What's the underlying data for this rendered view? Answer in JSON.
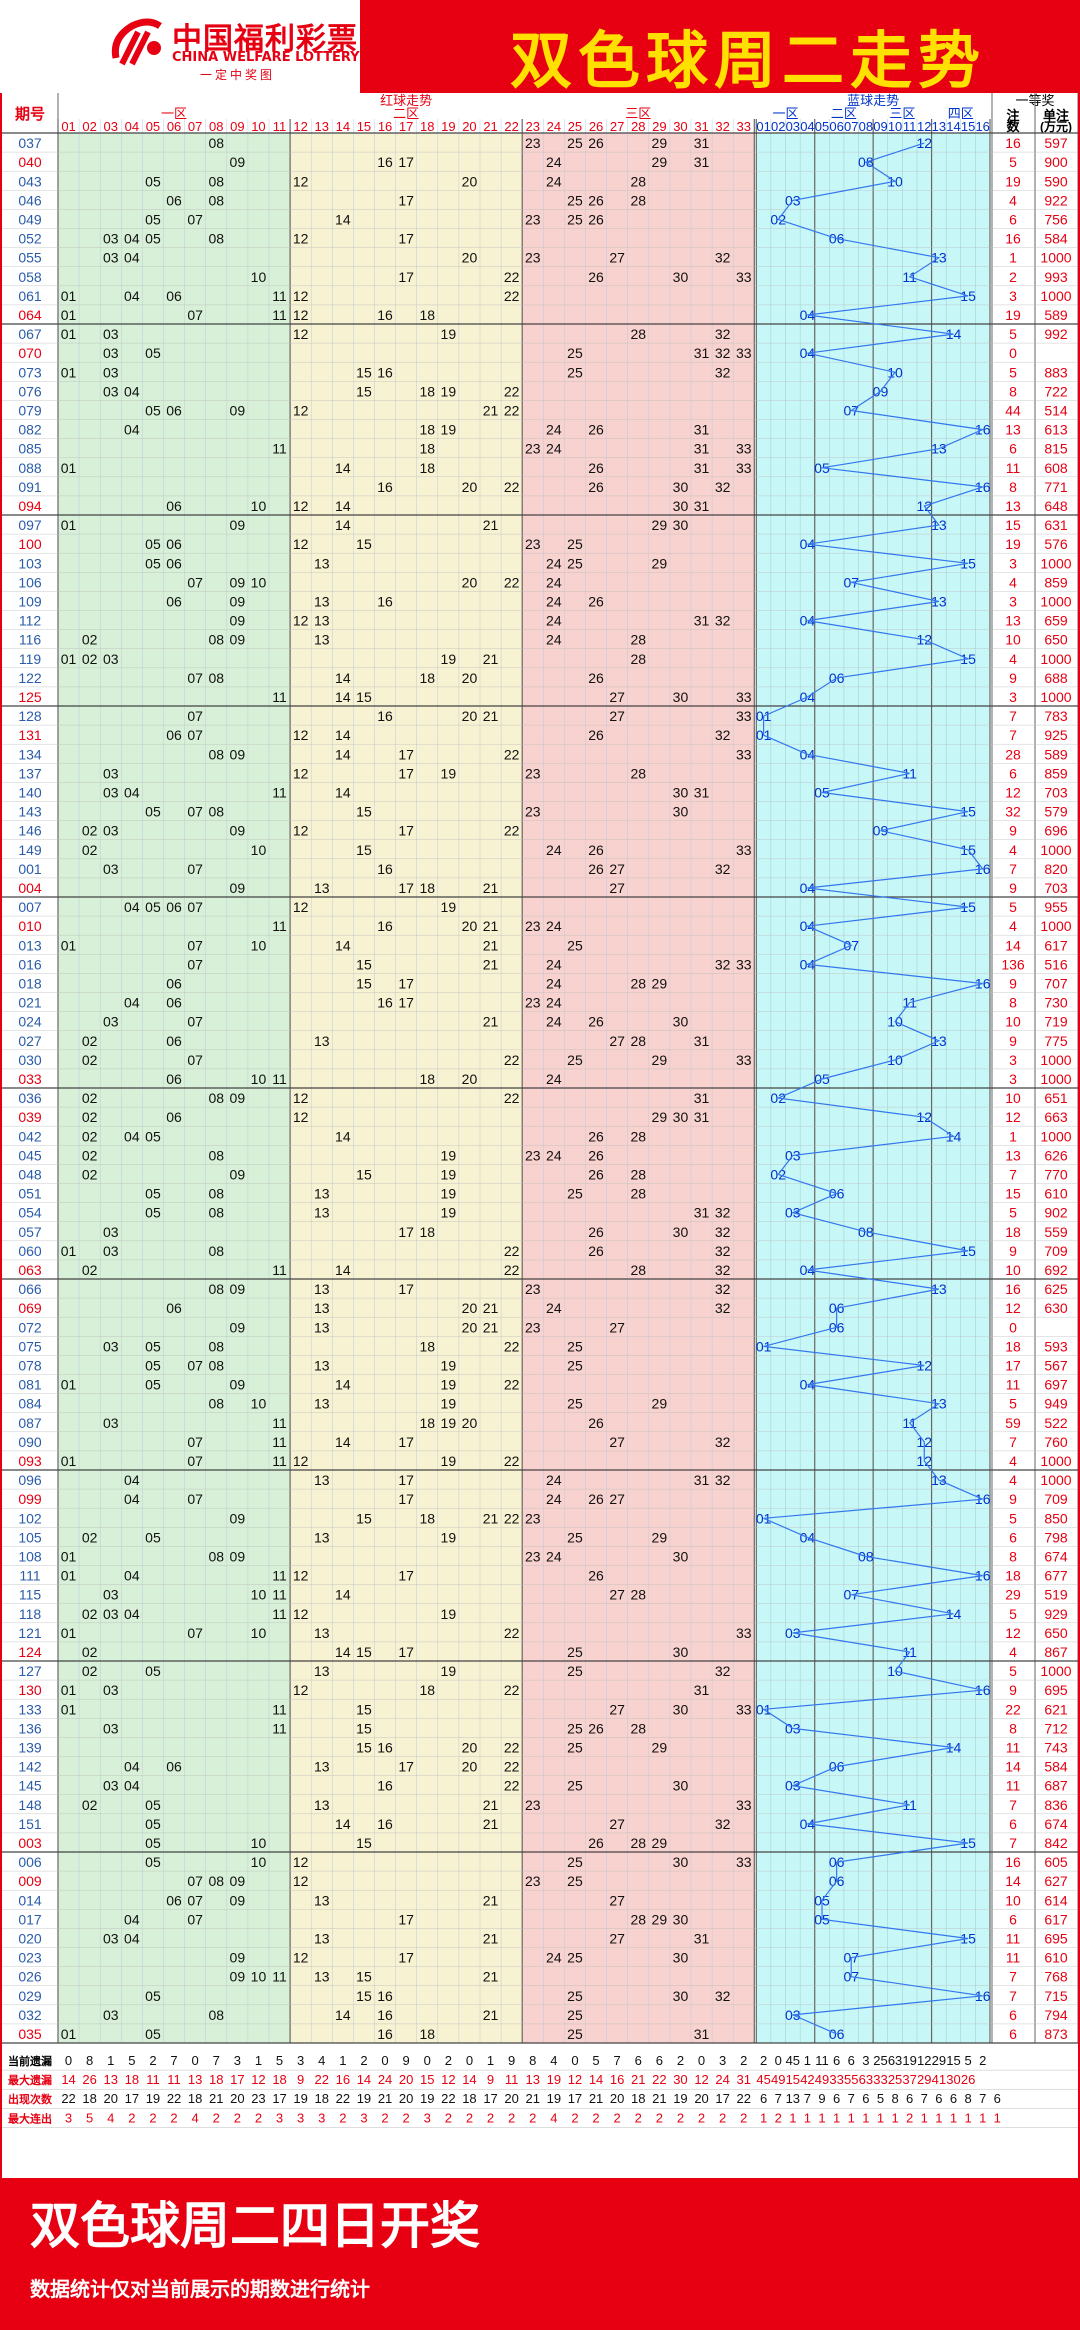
{
  "header": {
    "logo_cn": "中国福利彩票",
    "logo_en": "CHINA WELFARE LOTTERY",
    "logo_sub": "一定中奖图",
    "title": "双色球周二走势"
  },
  "table": {
    "issue_label": "期号",
    "red_label": "红球走势",
    "zone1": "一区",
    "zone2": "二区",
    "zone3": "三区",
    "blue_label": "蓝球走势",
    "bzone1": "一区",
    "bzone2": "二区",
    "bzone3": "三区",
    "bzone4": "四区",
    "prize_label": "一等奖",
    "count_label": "注数",
    "money_label": "单注(万元)"
  },
  "stats_labels": [
    "当前遗漏",
    "最大遗漏",
    "出现次数",
    "最大连出"
  ],
  "stats": [
    "0 8 1 5 2 7 0 7 3 1 5 3 4 1 2 0 9 0 2 0 1 9 8 4 0 5 7 6 6 2 0 3 2 2 0 45 1 11 6 6 3 25 63 19 12 29 15 5 2",
    "14 26 13 18 11 11 13 18 17 12 18 9 22 16 14 24 20 15 12 14 9 11 13 19 12 14 16 21 22 30 12 24 31 45 49 15 42 49 33 55 63 33 25 37 29 41 30 26",
    "22 18 20 17 19 22 18 21 20 23 17 19 18 22 19 21 20 19 22 18 17 20 21 19 17 21 20 18 21 19 20 17 22 6 7 13 7 9 6 7 6 5 8 6 7 6 6 8 7 6",
    "3 5 4 2 2 2 4 2 2 2 3 3 3 2 3 2 2 3 2 2 2 2 2 4 2 2 2 2 2 2 2 2 2 1 2 1 1 1 1 1 1 1 1 2 1 1 1 1 1 1"
  ],
  "footer": {
    "big": "双色球周二四日开奖",
    "small": "数据统计仅对当前展示的期数进行统计"
  },
  "draws": [
    {
      "i": "037",
      "r": [
        8,
        23,
        25,
        26,
        29,
        31
      ],
      "b": 12,
      "c": "16",
      "m": "597"
    },
    {
      "i": "040",
      "r": [
        9,
        16,
        17,
        24,
        29,
        31
      ],
      "b": 8,
      "c": "5",
      "m": "900"
    },
    {
      "i": "043",
      "r": [
        5,
        8,
        12,
        20,
        24,
        28
      ],
      "b": 10,
      "c": "19",
      "m": "590"
    },
    {
      "i": "046",
      "r": [
        6,
        8,
        17,
        25,
        26,
        28
      ],
      "b": 3,
      "c": "4",
      "m": "922"
    },
    {
      "i": "049",
      "r": [
        5,
        7,
        14,
        23,
        25,
        26
      ],
      "b": 2,
      "c": "6",
      "m": "756"
    },
    {
      "i": "052",
      "r": [
        3,
        4,
        5,
        8,
        12,
        17
      ],
      "b": 6,
      "c": "16",
      "m": "584"
    },
    {
      "i": "055",
      "r": [
        3,
        4,
        20,
        23,
        27,
        32
      ],
      "b": 13,
      "c": "1",
      "m": "1000"
    },
    {
      "i": "058",
      "r": [
        10,
        17,
        22,
        26,
        30,
        33
      ],
      "b": 11,
      "c": "2",
      "m": "993"
    },
    {
      "i": "061",
      "r": [
        1,
        4,
        6,
        11,
        12,
        22
      ],
      "b": 15,
      "c": "3",
      "m": "1000"
    },
    {
      "i": "064",
      "r": [
        1,
        7,
        11,
        12,
        16,
        18
      ],
      "b": 4,
      "c": "19",
      "m": "589"
    },
    {
      "i": "067",
      "r": [
        1,
        3,
        12,
        19,
        28,
        32
      ],
      "b": 14,
      "c": "5",
      "m": "992"
    },
    {
      "i": "070",
      "r": [
        3,
        5,
        25,
        31,
        32,
        33
      ],
      "b": 4,
      "c": "0",
      "m": ""
    },
    {
      "i": "073",
      "r": [
        1,
        3,
        15,
        16,
        25,
        32
      ],
      "b": 10,
      "c": "5",
      "m": "883"
    },
    {
      "i": "076",
      "r": [
        3,
        4,
        15,
        18,
        19,
        22
      ],
      "b": 9,
      "c": "8",
      "m": "722"
    },
    {
      "i": "079",
      "r": [
        5,
        6,
        9,
        12,
        21,
        22
      ],
      "b": 7,
      "c": "44",
      "m": "514"
    },
    {
      "i": "082",
      "r": [
        4,
        18,
        19,
        24,
        26,
        31
      ],
      "b": 16,
      "c": "13",
      "m": "613"
    },
    {
      "i": "085",
      "r": [
        11,
        18,
        23,
        24,
        31,
        33
      ],
      "b": 13,
      "c": "6",
      "m": "815"
    },
    {
      "i": "088",
      "r": [
        1,
        14,
        18,
        26,
        31,
        33
      ],
      "b": 5,
      "c": "11",
      "m": "608"
    },
    {
      "i": "091",
      "r": [
        16,
        20,
        22,
        26,
        30,
        32
      ],
      "b": 16,
      "c": "8",
      "m": "771"
    },
    {
      "i": "094",
      "r": [
        6,
        10,
        12,
        14,
        30,
        31
      ],
      "b": 12,
      "c": "13",
      "m": "648"
    },
    {
      "i": "097",
      "r": [
        1,
        9,
        14,
        21,
        29,
        30
      ],
      "b": 13,
      "c": "15",
      "m": "631"
    },
    {
      "i": "100",
      "r": [
        5,
        6,
        12,
        15,
        23,
        25
      ],
      "b": 4,
      "c": "19",
      "m": "576"
    },
    {
      "i": "103",
      "r": [
        5,
        6,
        13,
        24,
        25,
        29
      ],
      "b": 15,
      "c": "3",
      "m": "1000"
    },
    {
      "i": "106",
      "r": [
        7,
        9,
        10,
        20,
        22,
        24
      ],
      "b": 7,
      "c": "4",
      "m": "859"
    },
    {
      "i": "109",
      "r": [
        6,
        9,
        13,
        16,
        24,
        26
      ],
      "b": 13,
      "c": "3",
      "m": "1000"
    },
    {
      "i": "112",
      "r": [
        9,
        12,
        13,
        24,
        31,
        32
      ],
      "b": 4,
      "c": "13",
      "m": "659"
    },
    {
      "i": "116",
      "r": [
        2,
        8,
        9,
        13,
        24,
        28
      ],
      "b": 12,
      "c": "10",
      "m": "650"
    },
    {
      "i": "119",
      "r": [
        1,
        2,
        3,
        19,
        21,
        28
      ],
      "b": 15,
      "c": "4",
      "m": "1000"
    },
    {
      "i": "122",
      "r": [
        7,
        8,
        14,
        18,
        20,
        26
      ],
      "b": 6,
      "c": "9",
      "m": "688"
    },
    {
      "i": "125",
      "r": [
        11,
        14,
        15,
        27,
        30,
        33
      ],
      "b": 4,
      "c": "3",
      "m": "1000"
    },
    {
      "i": "128",
      "r": [
        7,
        16,
        20,
        21,
        27,
        33
      ],
      "b": 1,
      "c": "7",
      "m": "783"
    },
    {
      "i": "131",
      "r": [
        6,
        7,
        12,
        14,
        26,
        32
      ],
      "b": 1,
      "c": "7",
      "m": "925"
    },
    {
      "i": "134",
      "r": [
        8,
        9,
        14,
        17,
        22,
        33
      ],
      "b": 4,
      "c": "28",
      "m": "589"
    },
    {
      "i": "137",
      "r": [
        3,
        12,
        17,
        19,
        23,
        28
      ],
      "b": 11,
      "c": "6",
      "m": "859"
    },
    {
      "i": "140",
      "r": [
        3,
        4,
        11,
        14,
        30,
        31
      ],
      "b": 5,
      "c": "12",
      "m": "703"
    },
    {
      "i": "143",
      "r": [
        5,
        7,
        8,
        15,
        23,
        30
      ],
      "b": 15,
      "c": "32",
      "m": "579"
    },
    {
      "i": "146",
      "r": [
        2,
        3,
        9,
        12,
        17,
        22
      ],
      "b": 9,
      "c": "9",
      "m": "696"
    },
    {
      "i": "149",
      "r": [
        2,
        10,
        24,
        26,
        33,
        15
      ],
      "b": 15,
      "c": "4",
      "m": "1000"
    },
    {
      "i": "001",
      "r": [
        3,
        7,
        16,
        26,
        27,
        32
      ],
      "b": 16,
      "c": "7",
      "m": "820"
    },
    {
      "i": "004",
      "r": [
        9,
        13,
        17,
        18,
        21,
        27
      ],
      "b": 4,
      "c": "9",
      "m": "703"
    },
    {
      "i": "007",
      "r": [
        4,
        5,
        6,
        7,
        12,
        19
      ],
      "b": 15,
      "c": "5",
      "m": "955"
    },
    {
      "i": "010",
      "r": [
        11,
        16,
        20,
        21,
        23,
        24
      ],
      "b": 4,
      "c": "4",
      "m": "1000"
    },
    {
      "i": "013",
      "r": [
        1,
        7,
        10,
        14,
        21,
        25
      ],
      "b": 7,
      "c": "14",
      "m": "617"
    },
    {
      "i": "016",
      "r": [
        7,
        15,
        21,
        24,
        32,
        33
      ],
      "b": 4,
      "c": "136",
      "m": "516"
    },
    {
      "i": "018",
      "r": [
        6,
        15,
        17,
        24,
        28,
        29
      ],
      "b": 16,
      "c": "9",
      "m": "707"
    },
    {
      "i": "021",
      "r": [
        4,
        6,
        16,
        17,
        23,
        24
      ],
      "b": 11,
      "c": "8",
      "m": "730"
    },
    {
      "i": "024",
      "r": [
        3,
        7,
        21,
        24,
        26,
        30
      ],
      "b": 10,
      "c": "10",
      "m": "719"
    },
    {
      "i": "027",
      "r": [
        2,
        6,
        13,
        27,
        28,
        31
      ],
      "b": 13,
      "c": "9",
      "m": "775"
    },
    {
      "i": "030",
      "r": [
        2,
        7,
        22,
        25,
        29,
        33
      ],
      "b": 10,
      "c": "3",
      "m": "1000"
    },
    {
      "i": "033",
      "r": [
        6,
        10,
        11,
        18,
        20,
        24
      ],
      "b": 5,
      "c": "3",
      "m": "1000"
    },
    {
      "i": "036",
      "r": [
        2,
        8,
        9,
        12,
        22,
        31
      ],
      "b": 2,
      "c": "10",
      "m": "651"
    },
    {
      "i": "039",
      "r": [
        2,
        6,
        12,
        29,
        30,
        31
      ],
      "b": 12,
      "c": "12",
      "m": "663"
    },
    {
      "i": "042",
      "r": [
        2,
        4,
        5,
        14,
        26,
        28
      ],
      "b": 14,
      "c": "1",
      "m": "1000"
    },
    {
      "i": "045",
      "r": [
        2,
        8,
        19,
        23,
        24,
        26
      ],
      "b": 3,
      "c": "13",
      "m": "626"
    },
    {
      "i": "048",
      "r": [
        2,
        9,
        15,
        19,
        26,
        28
      ],
      "b": 2,
      "c": "7",
      "m": "770"
    },
    {
      "i": "051",
      "r": [
        5,
        8,
        13,
        19,
        25,
        28
      ],
      "b": 6,
      "c": "15",
      "m": "610"
    },
    {
      "i": "054",
      "r": [
        5,
        8,
        13,
        19,
        31,
        32
      ],
      "b": 3,
      "c": "5",
      "m": "902"
    },
    {
      "i": "057",
      "r": [
        3,
        17,
        18,
        26,
        30,
        32
      ],
      "b": 8,
      "c": "18",
      "m": "559"
    },
    {
      "i": "060",
      "r": [
        1,
        3,
        8,
        22,
        26,
        32
      ],
      "b": 15,
      "c": "9",
      "m": "709"
    },
    {
      "i": "063",
      "r": [
        2,
        11,
        14,
        22,
        28,
        32
      ],
      "b": 4,
      "c": "10",
      "m": "692"
    },
    {
      "i": "066",
      "r": [
        8,
        9,
        13,
        17,
        23,
        32
      ],
      "b": 13,
      "c": "16",
      "m": "625"
    },
    {
      "i": "069",
      "r": [
        6,
        13,
        20,
        21,
        24,
        32
      ],
      "b": 6,
      "c": "12",
      "m": "630"
    },
    {
      "i": "072",
      "r": [
        9,
        13,
        20,
        21,
        23,
        27
      ],
      "b": 6,
      "c": "0",
      "m": ""
    },
    {
      "i": "075",
      "r": [
        3,
        5,
        8,
        18,
        22,
        25
      ],
      "b": 1,
      "c": "18",
      "m": "593"
    },
    {
      "i": "078",
      "r": [
        5,
        7,
        8,
        13,
        19,
        25
      ],
      "b": 12,
      "c": "17",
      "m": "567"
    },
    {
      "i": "081",
      "r": [
        1,
        5,
        9,
        14,
        19,
        22
      ],
      "b": 4,
      "c": "11",
      "m": "697"
    },
    {
      "i": "084",
      "r": [
        8,
        10,
        13,
        19,
        25,
        29
      ],
      "b": 13,
      "c": "5",
      "m": "949"
    },
    {
      "i": "087",
      "r": [
        3,
        11,
        18,
        19,
        20,
        26
      ],
      "b": 11,
      "c": "59",
      "m": "522"
    },
    {
      "i": "090",
      "r": [
        7,
        11,
        14,
        17,
        27,
        32
      ],
      "b": 12,
      "c": "7",
      "m": "760"
    },
    {
      "i": "093",
      "r": [
        1,
        7,
        11,
        12,
        19,
        22
      ],
      "b": 12,
      "c": "4",
      "m": "1000"
    },
    {
      "i": "096",
      "r": [
        4,
        13,
        17,
        24,
        31,
        32
      ],
      "b": 13,
      "c": "4",
      "m": "1000"
    },
    {
      "i": "099",
      "r": [
        4,
        7,
        17,
        24,
        26,
        27
      ],
      "b": 16,
      "c": "9",
      "m": "709"
    },
    {
      "i": "102",
      "r": [
        9,
        15,
        18,
        21,
        22,
        23
      ],
      "b": 1,
      "c": "5",
      "m": "850"
    },
    {
      "i": "105",
      "r": [
        2,
        5,
        13,
        19,
        25,
        29
      ],
      "b": 4,
      "c": "6",
      "m": "798"
    },
    {
      "i": "108",
      "r": [
        1,
        8,
        9,
        23,
        24,
        30
      ],
      "b": 8,
      "c": "8",
      "m": "674"
    },
    {
      "i": "111",
      "r": [
        1,
        4,
        11,
        12,
        17,
        26
      ],
      "b": 16,
      "c": "18",
      "m": "677"
    },
    {
      "i": "115",
      "r": [
        3,
        10,
        11,
        14,
        27,
        28
      ],
      "b": 7,
      "c": "29",
      "m": "519"
    },
    {
      "i": "118",
      "r": [
        2,
        3,
        4,
        11,
        12,
        19
      ],
      "b": 14,
      "c": "5",
      "m": "929"
    },
    {
      "i": "121",
      "r": [
        1,
        7,
        10,
        13,
        22,
        33
      ],
      "b": 3,
      "c": "12",
      "m": "650"
    },
    {
      "i": "124",
      "r": [
        2,
        14,
        15,
        17,
        25,
        30
      ],
      "b": 11,
      "c": "4",
      "m": "867"
    },
    {
      "i": "127",
      "r": [
        2,
        5,
        13,
        19,
        25,
        32
      ],
      "b": 10,
      "c": "5",
      "m": "1000"
    },
    {
      "i": "130",
      "r": [
        1,
        3,
        12,
        18,
        22,
        31
      ],
      "b": 16,
      "c": "9",
      "m": "695"
    },
    {
      "i": "133",
      "r": [
        1,
        11,
        15,
        27,
        30,
        33
      ],
      "b": 1,
      "c": "22",
      "m": "621"
    },
    {
      "i": "136",
      "r": [
        3,
        11,
        15,
        25,
        26,
        28
      ],
      "b": 3,
      "c": "8",
      "m": "712"
    },
    {
      "i": "139",
      "r": [
        15,
        16,
        20,
        22,
        25,
        29
      ],
      "b": 14,
      "c": "11",
      "m": "743"
    },
    {
      "i": "142",
      "r": [
        4,
        6,
        13,
        17,
        20,
        22
      ],
      "b": 6,
      "c": "14",
      "m": "584"
    },
    {
      "i": "145",
      "r": [
        3,
        4,
        16,
        22,
        25,
        30
      ],
      "b": 3,
      "c": "11",
      "m": "687"
    },
    {
      "i": "148",
      "r": [
        2,
        5,
        13,
        21,
        23,
        33
      ],
      "b": 11,
      "c": "7",
      "m": "836"
    },
    {
      "i": "151",
      "r": [
        5,
        14,
        16,
        21,
        27,
        32
      ],
      "b": 4,
      "c": "6",
      "m": "674"
    },
    {
      "i": "003",
      "r": [
        5,
        10,
        15,
        26,
        28,
        29
      ],
      "b": 15,
      "c": "7",
      "m": "842"
    },
    {
      "i": "006",
      "r": [
        5,
        10,
        12,
        25,
        30,
        33
      ],
      "b": 6,
      "c": "16",
      "m": "605"
    },
    {
      "i": "009",
      "r": [
        7,
        8,
        9,
        12,
        23,
        25
      ],
      "b": 6,
      "c": "14",
      "m": "627"
    },
    {
      "i": "014",
      "r": [
        6,
        7,
        9,
        13,
        21,
        27
      ],
      "b": 5,
      "c": "10",
      "m": "614"
    },
    {
      "i": "017",
      "r": [
        4,
        7,
        17,
        28,
        29,
        30
      ],
      "b": 5,
      "c": "6",
      "m": "617"
    },
    {
      "i": "020",
      "r": [
        3,
        4,
        13,
        21,
        27,
        31
      ],
      "b": 15,
      "c": "11",
      "m": "695"
    },
    {
      "i": "023",
      "r": [
        9,
        12,
        17,
        24,
        25,
        30
      ],
      "b": 7,
      "c": "11",
      "m": "610"
    },
    {
      "i": "026",
      "r": [
        9,
        10,
        11,
        13,
        15,
        21
      ],
      "b": 7,
      "c": "7",
      "m": "768"
    },
    {
      "i": "029",
      "r": [
        5,
        15,
        16,
        25,
        30,
        32
      ],
      "b": 16,
      "c": "7",
      "m": "715"
    },
    {
      "i": "032",
      "r": [
        3,
        8,
        14,
        16,
        21,
        25
      ],
      "b": 3,
      "c": "6",
      "m": "794"
    },
    {
      "i": "035",
      "r": [
        1,
        5,
        16,
        18,
        25,
        31
      ],
      "b": 6,
      "c": "6",
      "m": "873"
    }
  ]
}
